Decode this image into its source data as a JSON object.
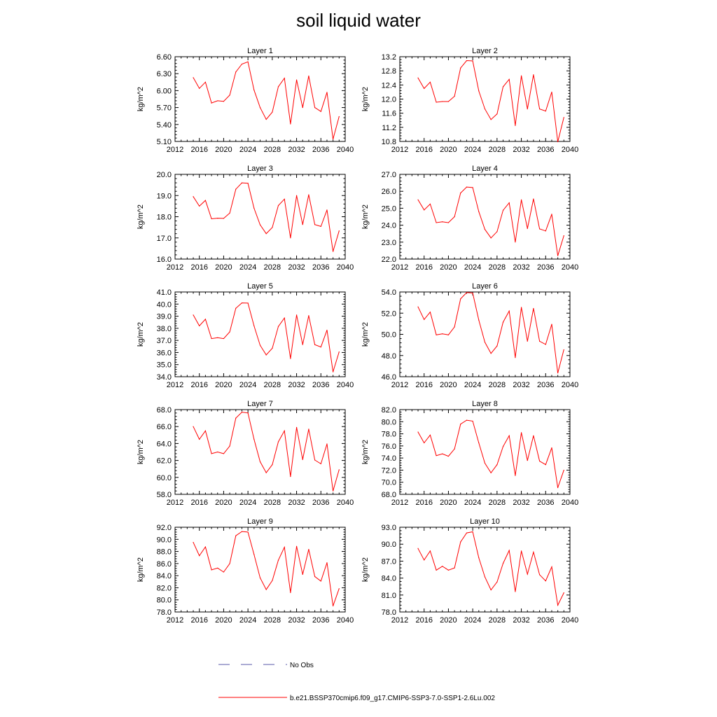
{
  "title": "soil liquid water",
  "legend": [
    {
      "label": "No Obs",
      "color": "#5a5aa8",
      "style": "dashed"
    },
    {
      "label": "b.e21.BSSP370cmip6.f09_g17.CMIP6-SSP3-7.0-SSP1-2.6Lu.002",
      "color": "#ff0000",
      "style": "solid"
    }
  ],
  "chart_data": [
    {
      "type": "line",
      "title": "Layer 1",
      "ylabel": "kg/m^2",
      "xlim": [
        2012,
        2040
      ],
      "xticks": [
        2012,
        2016,
        2020,
        2024,
        2028,
        2032,
        2036,
        2040
      ],
      "ylim": [
        5.1,
        6.6
      ],
      "yticks": [
        "5.10",
        "5.40",
        "5.70",
        "6.00",
        "6.30",
        "6.60"
      ],
      "x": [
        2015,
        2016,
        2017,
        2018,
        2019,
        2020,
        2021,
        2022,
        2023,
        2024,
        2025,
        2026,
        2027,
        2028,
        2029,
        2030,
        2031,
        2032,
        2033,
        2034,
        2035,
        2036,
        2037,
        2038,
        2039
      ],
      "series": [
        {
          "values": [
            6.23,
            6.04,
            6.15,
            5.78,
            5.82,
            5.81,
            5.92,
            6.33,
            6.47,
            6.51,
            6.01,
            5.7,
            5.49,
            5.62,
            6.07,
            6.22,
            5.41,
            6.19,
            5.7,
            6.26,
            5.7,
            5.63,
            5.97,
            5.14,
            5.54
          ],
          "color": "#ff0000"
        }
      ]
    },
    {
      "type": "line",
      "title": "Layer 2",
      "ylabel": "kg/m^2",
      "xlim": [
        2012,
        2040
      ],
      "xticks": [
        2012,
        2016,
        2020,
        2024,
        2028,
        2032,
        2036,
        2040
      ],
      "ylim": [
        10.8,
        13.2
      ],
      "yticks": [
        "10.8",
        "11.2",
        "11.6",
        "12.0",
        "12.4",
        "12.8",
        "13.2"
      ],
      "x": [
        2015,
        2016,
        2017,
        2018,
        2019,
        2020,
        2021,
        2022,
        2023,
        2024,
        2025,
        2026,
        2027,
        2028,
        2029,
        2030,
        2031,
        2032,
        2033,
        2034,
        2035,
        2036,
        2037,
        2038,
        2039
      ],
      "series": [
        {
          "values": [
            12.6,
            12.3,
            12.48,
            11.91,
            11.93,
            11.93,
            12.08,
            12.88,
            13.09,
            13.08,
            12.23,
            11.72,
            11.42,
            11.58,
            12.35,
            12.56,
            11.25,
            12.66,
            11.72,
            12.69,
            11.72,
            11.66,
            12.2,
            10.79,
            11.48
          ],
          "color": "#ff0000"
        }
      ]
    },
    {
      "type": "line",
      "title": "Layer 3",
      "ylabel": "kg/m^2",
      "xlim": [
        2012,
        2040
      ],
      "xticks": [
        2012,
        2016,
        2020,
        2024,
        2028,
        2032,
        2036,
        2040
      ],
      "ylim": [
        16.0,
        20.0
      ],
      "yticks": [
        "16.0",
        "17.0",
        "18.0",
        "19.0",
        "20.0"
      ],
      "x": [
        2015,
        2016,
        2017,
        2018,
        2019,
        2020,
        2021,
        2022,
        2023,
        2024,
        2025,
        2026,
        2027,
        2028,
        2029,
        2030,
        2031,
        2032,
        2033,
        2034,
        2035,
        2036,
        2037,
        2038,
        2039
      ],
      "series": [
        {
          "values": [
            18.95,
            18.5,
            18.77,
            17.9,
            17.93,
            17.92,
            18.17,
            19.3,
            19.6,
            19.58,
            18.4,
            17.62,
            17.2,
            17.49,
            18.53,
            18.83,
            17.0,
            19.0,
            17.63,
            19.04,
            17.63,
            17.54,
            18.32,
            16.36,
            17.33
          ],
          "color": "#ff0000"
        }
      ]
    },
    {
      "type": "line",
      "title": "Layer 4",
      "ylabel": "kg/m^2",
      "xlim": [
        2012,
        2040
      ],
      "xticks": [
        2012,
        2016,
        2020,
        2024,
        2028,
        2032,
        2036,
        2040
      ],
      "ylim": [
        22.0,
        27.0
      ],
      "yticks": [
        "22.0",
        "23.0",
        "24.0",
        "25.0",
        "26.0",
        "27.0"
      ],
      "x": [
        2015,
        2016,
        2017,
        2018,
        2019,
        2020,
        2021,
        2022,
        2023,
        2024,
        2025,
        2026,
        2027,
        2028,
        2029,
        2030,
        2031,
        2032,
        2033,
        2034,
        2035,
        2036,
        2037,
        2038,
        2039
      ],
      "series": [
        {
          "values": [
            25.5,
            24.9,
            25.25,
            24.15,
            24.2,
            24.15,
            24.5,
            25.9,
            26.25,
            26.22,
            24.8,
            23.75,
            23.25,
            23.62,
            24.88,
            25.32,
            23.0,
            25.5,
            23.8,
            25.55,
            23.78,
            23.66,
            24.65,
            22.2,
            23.38
          ],
          "color": "#ff0000"
        }
      ]
    },
    {
      "type": "line",
      "title": "Layer 5",
      "ylabel": "kg/m^2",
      "xlim": [
        2012,
        2040
      ],
      "xticks": [
        2012,
        2016,
        2020,
        2024,
        2028,
        2032,
        2036,
        2040
      ],
      "ylim": [
        34.0,
        41.0
      ],
      "yticks": [
        "34.0",
        "35.0",
        "36.0",
        "37.0",
        "38.0",
        "39.0",
        "40.0",
        "41.0"
      ],
      "x": [
        2015,
        2016,
        2017,
        2018,
        2019,
        2020,
        2021,
        2022,
        2023,
        2024,
        2025,
        2026,
        2027,
        2028,
        2029,
        2030,
        2031,
        2032,
        2033,
        2034,
        2035,
        2036,
        2037,
        2038,
        2039
      ],
      "series": [
        {
          "values": [
            39.1,
            38.2,
            38.75,
            37.15,
            37.22,
            37.15,
            37.7,
            39.65,
            40.1,
            40.08,
            38.2,
            36.6,
            35.8,
            36.35,
            38.15,
            38.85,
            35.5,
            39.1,
            36.65,
            39.05,
            36.65,
            36.45,
            37.85,
            34.4,
            36.05
          ],
          "color": "#ff0000"
        }
      ]
    },
    {
      "type": "line",
      "title": "Layer 6",
      "ylabel": "kg/m^2",
      "xlim": [
        2012,
        2040
      ],
      "xticks": [
        2012,
        2016,
        2020,
        2024,
        2028,
        2032,
        2036,
        2040
      ],
      "ylim": [
        46.0,
        54.0
      ],
      "yticks": [
        "46.0",
        "48.0",
        "50.0",
        "52.0",
        "54.0"
      ],
      "x": [
        2015,
        2016,
        2017,
        2018,
        2019,
        2020,
        2021,
        2022,
        2023,
        2024,
        2025,
        2026,
        2027,
        2028,
        2029,
        2030,
        2031,
        2032,
        2033,
        2034,
        2035,
        2036,
        2037,
        2038,
        2039
      ],
      "series": [
        {
          "values": [
            52.6,
            51.4,
            52.1,
            49.95,
            50.05,
            49.95,
            50.7,
            53.35,
            53.95,
            53.9,
            51.35,
            49.25,
            48.2,
            48.9,
            51.15,
            52.2,
            47.8,
            52.55,
            49.35,
            52.45,
            49.35,
            49.05,
            50.95,
            46.35,
            48.55
          ],
          "color": "#ff0000"
        }
      ]
    },
    {
      "type": "line",
      "title": "Layer 7",
      "ylabel": "kg/m^2",
      "xlim": [
        2012,
        2040
      ],
      "xticks": [
        2012,
        2016,
        2020,
        2024,
        2028,
        2032,
        2036,
        2040
      ],
      "ylim": [
        58.0,
        68.0
      ],
      "yticks": [
        "58.0",
        "60.0",
        "62.0",
        "64.0",
        "66.0",
        "68.0"
      ],
      "x": [
        2015,
        2016,
        2017,
        2018,
        2019,
        2020,
        2021,
        2022,
        2023,
        2024,
        2025,
        2026,
        2027,
        2028,
        2029,
        2030,
        2031,
        2032,
        2033,
        2034,
        2035,
        2036,
        2037,
        2038,
        2039
      ],
      "series": [
        {
          "values": [
            66.0,
            64.5,
            65.5,
            62.8,
            63.0,
            62.8,
            63.7,
            67.0,
            67.7,
            67.6,
            64.5,
            61.85,
            60.55,
            61.5,
            64.2,
            65.5,
            60.1,
            65.9,
            62.1,
            65.7,
            62.05,
            61.6,
            63.95,
            58.4,
            60.9
          ],
          "color": "#ff0000"
        }
      ]
    },
    {
      "type": "line",
      "title": "Layer 8",
      "ylabel": "kg/m^2",
      "xlim": [
        2012,
        2040
      ],
      "xticks": [
        2012,
        2016,
        2020,
        2024,
        2028,
        2032,
        2036,
        2040
      ],
      "ylim": [
        68.0,
        82.0
      ],
      "yticks": [
        "68.0",
        "70.0",
        "72.0",
        "74.0",
        "76.0",
        "78.0",
        "80.0",
        "82.0"
      ],
      "x": [
        2015,
        2016,
        2017,
        2018,
        2019,
        2020,
        2021,
        2022,
        2023,
        2024,
        2025,
        2026,
        2027,
        2028,
        2029,
        2030,
        2031,
        2032,
        2033,
        2034,
        2035,
        2036,
        2037,
        2038,
        2039
      ],
      "series": [
        {
          "values": [
            78.3,
            76.5,
            77.8,
            74.4,
            74.7,
            74.3,
            75.5,
            79.6,
            80.25,
            80.1,
            76.5,
            73.15,
            71.55,
            72.9,
            75.9,
            77.7,
            71.1,
            78.2,
            73.6,
            77.7,
            73.5,
            72.9,
            75.7,
            69.1,
            72.0
          ],
          "color": "#ff0000"
        }
      ]
    },
    {
      "type": "line",
      "title": "Layer 9",
      "ylabel": "kg/m^2",
      "xlim": [
        2012,
        2040
      ],
      "xticks": [
        2012,
        2016,
        2020,
        2024,
        2028,
        2032,
        2036,
        2040
      ],
      "ylim": [
        78.0,
        92.0
      ],
      "yticks": [
        "78.0",
        "80.0",
        "82.0",
        "84.0",
        "86.0",
        "88.0",
        "90.0",
        "92.0"
      ],
      "x": [
        2015,
        2016,
        2017,
        2018,
        2019,
        2020,
        2021,
        2022,
        2023,
        2024,
        2025,
        2026,
        2027,
        2028,
        2029,
        2030,
        2031,
        2032,
        2033,
        2034,
        2035,
        2036,
        2037,
        2038,
        2039
      ],
      "series": [
        {
          "values": [
            89.5,
            87.3,
            88.75,
            84.95,
            85.25,
            84.6,
            86.0,
            90.6,
            91.3,
            91.2,
            87.5,
            83.65,
            81.7,
            83.2,
            86.55,
            88.7,
            81.2,
            88.85,
            84.2,
            88.35,
            83.85,
            83.1,
            86.15,
            79.0,
            81.85
          ],
          "color": "#ff0000"
        }
      ]
    },
    {
      "type": "line",
      "title": "Layer 10",
      "ylabel": "kg/m^2",
      "xlim": [
        2012,
        2040
      ],
      "xticks": [
        2012,
        2016,
        2020,
        2024,
        2028,
        2032,
        2036,
        2040
      ],
      "ylim": [
        78.0,
        93.0
      ],
      "yticks": [
        "78.0",
        "81.0",
        "84.0",
        "87.0",
        "90.0",
        "93.0"
      ],
      "x": [
        2015,
        2016,
        2017,
        2018,
        2019,
        2020,
        2021,
        2022,
        2023,
        2024,
        2025,
        2026,
        2027,
        2028,
        2029,
        2030,
        2031,
        2032,
        2033,
        2034,
        2035,
        2036,
        2037,
        2038,
        2039
      ],
      "series": [
        {
          "values": [
            89.25,
            87.2,
            88.8,
            85.4,
            86.1,
            85.4,
            85.8,
            90.4,
            92.0,
            92.2,
            87.6,
            84.2,
            81.9,
            83.3,
            86.6,
            88.9,
            81.6,
            88.8,
            84.7,
            88.6,
            84.6,
            83.5,
            86.0,
            79.2,
            81.4
          ],
          "color": "#ff0000"
        }
      ]
    }
  ]
}
